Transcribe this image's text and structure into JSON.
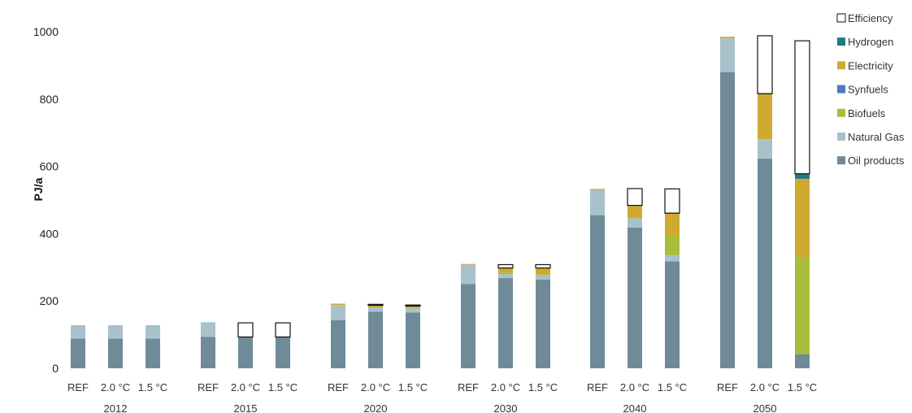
{
  "chart_data": {
    "type": "bar",
    "stacked": true,
    "ylabel": "PJ/a",
    "ylim": [
      0,
      1000
    ],
    "yticks": [
      0,
      200,
      400,
      600,
      800,
      1000
    ],
    "groups": [
      "2012",
      "2015",
      "2020",
      "2030",
      "2040",
      "2050"
    ],
    "scenarios": [
      "REF",
      "2.0 °C",
      "1.5 °C"
    ],
    "legend_position": "right",
    "series": [
      {
        "name": "Oil products",
        "color": "#6f8b97",
        "values": [
          88,
          88,
          88,
          93,
          93,
          93,
          143,
          168,
          166,
          250,
          268,
          264,
          455,
          418,
          318,
          880,
          623,
          42
        ]
      },
      {
        "name": "Natural Gas",
        "color": "#a9c1cb",
        "values": [
          40,
          40,
          40,
          44,
          0,
          0,
          45,
          12,
          12,
          58,
          12,
          12,
          75,
          28,
          18,
          100,
          58,
          0
        ]
      },
      {
        "name": "Biofuels",
        "color": "#a9bd3b",
        "values": [
          0,
          0,
          0,
          0,
          0,
          0,
          0,
          2,
          2,
          0,
          4,
          4,
          0,
          0,
          58,
          0,
          0,
          288
        ]
      },
      {
        "name": "Synfuels",
        "color": "#4a7db8",
        "values": [
          0,
          0,
          0,
          0,
          0,
          0,
          0,
          0,
          0,
          0,
          0,
          0,
          0,
          0,
          0,
          0,
          0,
          0
        ]
      },
      {
        "name": "Electricity",
        "color": "#cfaa2f",
        "values": [
          0,
          0,
          0,
          0,
          0,
          0,
          4,
          5,
          5,
          2,
          14,
          18,
          3,
          38,
          65,
          5,
          133,
          233
        ]
      },
      {
        "name": "Hydrogen",
        "color": "#1c7b86",
        "values": [
          0,
          0,
          0,
          0,
          0,
          0,
          0,
          0,
          0,
          0,
          0,
          0,
          0,
          0,
          2,
          0,
          2,
          15
        ]
      },
      {
        "name": "Efficiency",
        "color": "#ffffff",
        "outline": "#111111",
        "values": [
          0,
          0,
          0,
          0,
          42,
          42,
          0,
          3,
          3,
          0,
          10,
          10,
          0,
          50,
          72,
          0,
          172,
          395
        ]
      }
    ]
  },
  "legend_order": [
    "Efficiency",
    "Hydrogen",
    "Electricity",
    "Synfuels",
    "Biofuels",
    "Natural Gas",
    "Oil products"
  ]
}
